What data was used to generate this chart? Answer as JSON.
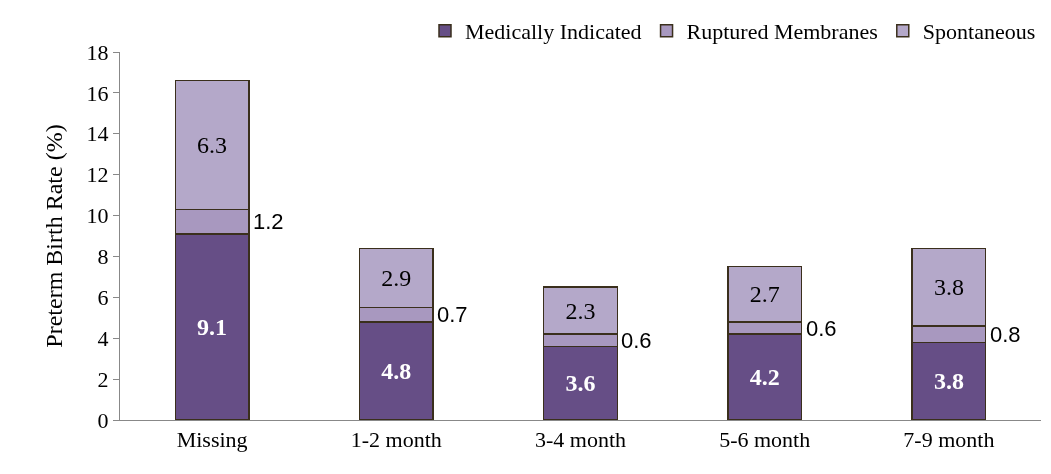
{
  "chart_data": {
    "type": "bar",
    "stacked": true,
    "ylabel": "Preterm Birth Rate (%)",
    "categories": [
      "Missing",
      "1-2 month",
      "3-4 month",
      "5-6 month",
      "7-9 month"
    ],
    "series": [
      {
        "name": "Medically Indicated",
        "color": "#664e86",
        "values": [
          9.1,
          4.8,
          3.6,
          4.2,
          3.8
        ]
      },
      {
        "name": "Ruptured Membranes",
        "color": "#a898bf",
        "values": [
          1.2,
          0.7,
          0.6,
          0.6,
          0.8
        ]
      },
      {
        "name": "Spontaneous",
        "color": "#b4a8c9",
        "values": [
          6.3,
          2.9,
          2.3,
          2.7,
          3.8
        ]
      }
    ],
    "ylim": [
      0,
      18
    ],
    "yticks": [
      0,
      2,
      4,
      6,
      8,
      10,
      12,
      14,
      16,
      18
    ],
    "grid": false,
    "legend": "top right",
    "data_labels": true
  }
}
